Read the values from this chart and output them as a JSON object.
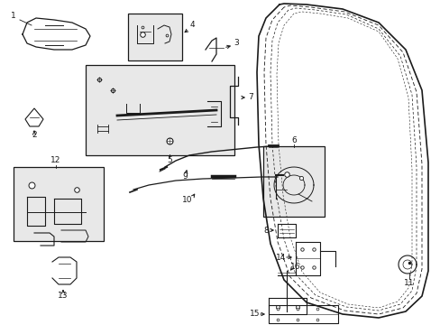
{
  "bg_color": "#ffffff",
  "line_color": "#1a1a1a",
  "box_color": "#e8e8e8",
  "figsize": [
    4.89,
    3.6
  ],
  "dpi": 100
}
